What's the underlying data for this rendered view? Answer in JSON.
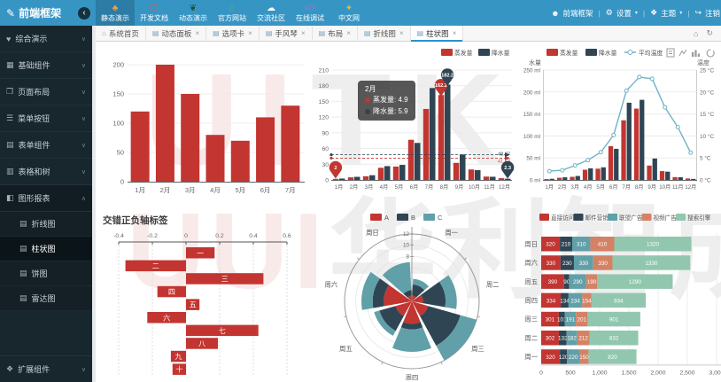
{
  "navbar": {
    "logo": "前端框架",
    "collapse_glyph": "‹",
    "items": [
      {
        "name": "static-demo",
        "label": "静态演示",
        "glyph": "♣",
        "color": "#f2a13c",
        "active": true
      },
      {
        "name": "dev-docs",
        "label": "开发文档",
        "glyph": "❒",
        "color": "#e8574c",
        "active": false
      },
      {
        "name": "dynamic-demo",
        "label": "动态演示",
        "glyph": "❦",
        "color": "#1e4d40",
        "active": false
      },
      {
        "name": "official-site",
        "label": "官方网站",
        "glyph": "⌂",
        "color": "#5cb85c",
        "active": false
      },
      {
        "name": "community",
        "label": "交流社区",
        "glyph": "☁",
        "color": "#ffffff",
        "active": false
      },
      {
        "name": "online-debug",
        "label": "在线调试",
        "glyph": "</>",
        "color": "#8e7cc3",
        "active": false
      },
      {
        "name": "chinese-site",
        "label": "中文网",
        "glyph": "✦",
        "color": "#e6b34a",
        "active": false
      }
    ],
    "user": "前端框架",
    "settings_label": "设置",
    "theme_label": "主题",
    "logout_label": "注销"
  },
  "sidebar": {
    "items": [
      {
        "name": "demo-overview",
        "label": "综合演示",
        "glyph": "♥"
      },
      {
        "name": "basic-components",
        "label": "基础组件",
        "glyph": "▦"
      },
      {
        "name": "page-layout",
        "label": "页面布局",
        "glyph": "❐"
      },
      {
        "name": "menu-buttons",
        "label": "菜单按钮",
        "glyph": "☰"
      },
      {
        "name": "form-components",
        "label": "表单组件",
        "glyph": "▤"
      },
      {
        "name": "table-and-tree",
        "label": "表格和树",
        "glyph": "▥"
      },
      {
        "name": "chart-reports",
        "label": "图形报表",
        "glyph": "◧",
        "expanded": true,
        "children": [
          {
            "name": "line-chart",
            "label": "折线图"
          },
          {
            "name": "bar-chart",
            "label": "柱状图",
            "active": true
          },
          {
            "name": "pie-chart",
            "label": "饼图"
          },
          {
            "name": "radar-chart",
            "label": "雷达图"
          }
        ]
      },
      {
        "name": "extension-components",
        "label": "扩展组件",
        "glyph": "❖",
        "pinned": true
      }
    ]
  },
  "tabbar": {
    "tabs": [
      {
        "name": "home",
        "label": "系统首页",
        "icon": "home",
        "closable": false,
        "active": false
      },
      {
        "name": "dynamic-panel",
        "label": "动态面板",
        "icon": "doc",
        "closable": true,
        "active": false
      },
      {
        "name": "tab-panel",
        "label": "选项卡",
        "icon": "doc",
        "closable": true,
        "active": false
      },
      {
        "name": "accordion",
        "label": "手风琴",
        "icon": "doc",
        "closable": true,
        "active": false
      },
      {
        "name": "layout",
        "label": "布局",
        "icon": "doc",
        "closable": true,
        "active": false
      },
      {
        "name": "line-chart",
        "label": "折线图",
        "icon": "doc",
        "closable": true,
        "active": false
      },
      {
        "name": "bar-chart",
        "label": "柱状图",
        "icon": "doc",
        "closable": true,
        "active": true
      }
    ],
    "tools": [
      {
        "name": "home-icon",
        "glyph": "⌂"
      },
      {
        "name": "refresh-icon",
        "glyph": "↻"
      }
    ]
  },
  "watermark": {
    "row1_left": "UI",
    "row1_right": "TK",
    "row2_left": "UUI",
    "row2_right": "华利智成"
  },
  "chart_data": [
    {
      "type": "bar",
      "title": "",
      "categories": [
        "1月",
        "2月",
        "3月",
        "4月",
        "5月",
        "6月",
        "7月"
      ],
      "values": [
        120,
        200,
        150,
        80,
        70,
        110,
        130
      ],
      "color": "#c23531",
      "ylim": [
        0,
        200
      ],
      "ytick": 50,
      "grid": true
    },
    {
      "type": "bar",
      "categories": [
        "1月",
        "2月",
        "3月",
        "4月",
        "5月",
        "6月",
        "7月",
        "8月",
        "9月",
        "10月",
        "11月",
        "12月"
      ],
      "ylim": [
        0,
        210
      ],
      "ytick": 30,
      "legend_position": "top-right",
      "series": [
        {
          "name": "蒸发量",
          "color": "#c23531",
          "values": [
            2,
            4.9,
            7,
            23.2,
            25.6,
            76.7,
            135.6,
            162.2,
            32.6,
            20,
            6.4,
            3.3
          ],
          "average": 41.63,
          "max_point": {
            "month": "8月",
            "label": "162.2"
          },
          "min_point": {
            "month": "1月",
            "label": "2"
          }
        },
        {
          "name": "降水量",
          "color": "#2f4554",
          "values": [
            2.6,
            5.9,
            9,
            26.4,
            28.7,
            70.7,
            175.6,
            182.2,
            48.7,
            18.8,
            6,
            2.3
          ],
          "average": 48.07,
          "max_point": {
            "month": "8月",
            "label": "182.2"
          },
          "min_point": {
            "month": "12月",
            "label": "2.3"
          }
        }
      ],
      "tooltip": {
        "title": "2月",
        "lines": [
          {
            "name": "蒸发量",
            "value": "4.9",
            "color": "#c23531"
          },
          {
            "name": "降水量",
            "value": "5.9",
            "color": "#2f4554"
          }
        ]
      }
    },
    {
      "type": "mixed",
      "categories": [
        "1月",
        "2月",
        "3月",
        "4月",
        "5月",
        "6月",
        "7月",
        "8月",
        "9月",
        "10月",
        "11月",
        "12月"
      ],
      "axis_left": {
        "name": "水量",
        "unit": " ml",
        "max": 250,
        "tick": 50
      },
      "axis_right": {
        "name": "温度",
        "unit": " °C",
        "max": 25,
        "tick": 5
      },
      "series": [
        {
          "name": "蒸发量",
          "kind": "bar",
          "color": "#c23531",
          "values": [
            2,
            4.9,
            7,
            23.2,
            25.6,
            76.7,
            135.6,
            162.2,
            32.6,
            20,
            6.4,
            3.3
          ]
        },
        {
          "name": "降水量",
          "kind": "bar",
          "color": "#2f4554",
          "values": [
            2.6,
            5.9,
            9,
            26.4,
            28.7,
            70.7,
            175.6,
            182.2,
            48.7,
            18.8,
            6,
            2.3
          ]
        },
        {
          "name": "平均温度",
          "kind": "line",
          "color": "#6fb3c5",
          "values": [
            2,
            2.2,
            3.3,
            4.5,
            6.3,
            10.2,
            20.3,
            23.4,
            23,
            16.5,
            12,
            6.2
          ]
        }
      ],
      "toolbox": [
        "data-view-icon",
        "line-type-icon",
        "bar-type-icon",
        "restore-icon"
      ]
    },
    {
      "type": "bar",
      "title": "交错正负轴标签",
      "orientation": "horizontal",
      "categories": [
        "一",
        "二",
        "三",
        "四",
        "五",
        "六",
        "七",
        "八",
        "九",
        "十"
      ],
      "values": [
        0.17,
        -0.36,
        0.46,
        -0.17,
        0.08,
        -0.23,
        0.43,
        0.19,
        -0.09,
        -0.08
      ],
      "xlim": [
        -0.4,
        0.6
      ],
      "xtick": 0.2,
      "color": "#c23531"
    },
    {
      "type": "polar-bar",
      "categories": [
        "周一",
        "周二",
        "周三",
        "周四",
        "周五",
        "周六",
        "周日"
      ],
      "series": [
        {
          "name": "A",
          "color": "#c23531",
          "values": [
            1,
            2,
            3,
            4,
            3,
            5,
            1
          ]
        },
        {
          "name": "B",
          "color": "#2f4554",
          "values": [
            2,
            4,
            6,
            1,
            3,
            2,
            1
          ]
        },
        {
          "name": "C",
          "color": "#61a0a8",
          "values": [
            1,
            2,
            3,
            4,
            1,
            2,
            5
          ]
        }
      ],
      "rlim": [
        0,
        12
      ],
      "rticks": [
        8,
        10,
        12
      ]
    },
    {
      "type": "bar-horizontal-stacked",
      "categories": [
        "周一",
        "周二",
        "周三",
        "周四",
        "周五",
        "周六",
        "周日"
      ],
      "series": [
        {
          "name": "直接访问",
          "color": "#c23531",
          "values": [
            320,
            302,
            301,
            334,
            390,
            330,
            320
          ]
        },
        {
          "name": "邮件营销",
          "color": "#2f4554",
          "values": [
            120,
            132,
            101,
            134,
            90,
            230,
            210
          ]
        },
        {
          "name": "联盟广告",
          "color": "#61a0a8",
          "values": [
            220,
            182,
            191,
            234,
            290,
            330,
            310
          ]
        },
        {
          "name": "视频广告",
          "color": "#d48265",
          "values": [
            150,
            212,
            201,
            154,
            190,
            330,
            410
          ]
        },
        {
          "name": "搜索引擎",
          "color": "#91c7ae",
          "values": [
            820,
            832,
            901,
            934,
            1290,
            1330,
            1320
          ]
        }
      ],
      "xlim": [
        0,
        3000
      ],
      "xtick": 500
    }
  ]
}
